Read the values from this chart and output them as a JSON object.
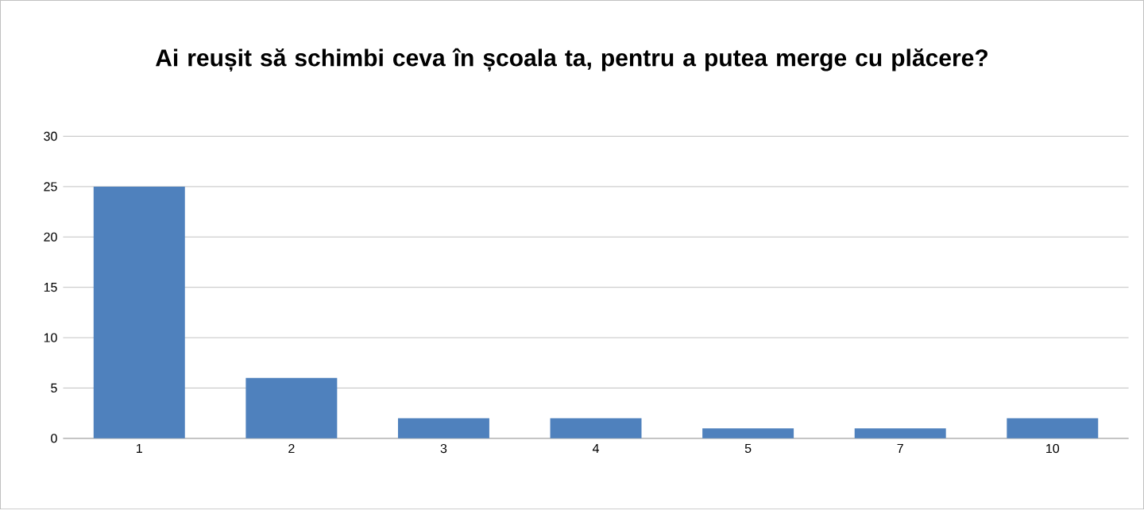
{
  "chart_data": {
    "type": "bar",
    "title": "Ai reușit să schimbi ceva în școala ta, pentru a putea merge cu plăcere?",
    "categories": [
      "1",
      "2",
      "3",
      "4",
      "5",
      "7",
      "10"
    ],
    "values": [
      25,
      6,
      2,
      2,
      1,
      1,
      2
    ],
    "color": "#4f81bd",
    "ylim": [
      0,
      30
    ],
    "yticks": [
      0,
      5,
      10,
      15,
      20,
      25,
      30
    ],
    "grid": "y"
  }
}
